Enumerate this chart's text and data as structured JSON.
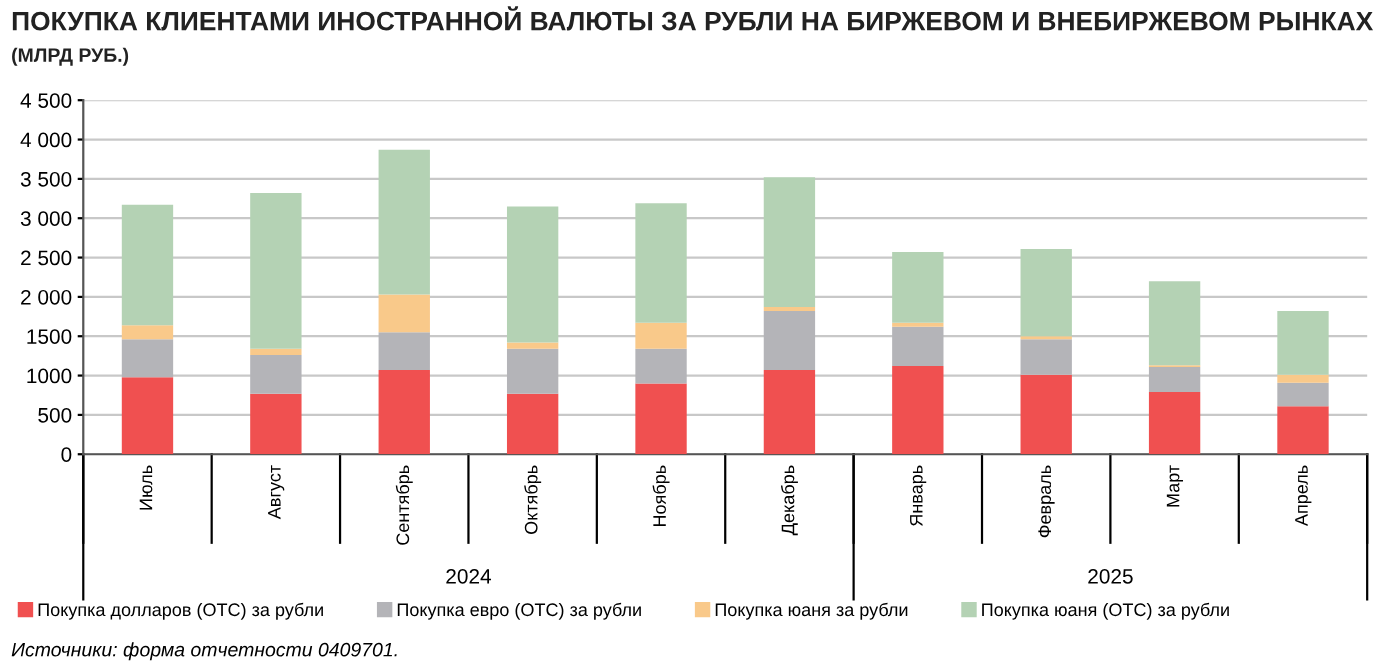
{
  "chart_data": {
    "type": "bar",
    "title": "ПОКУПКА КЛИЕНТАМИ ИНОСТРАННОЙ ВАЛЮТЫ ЗА РУБЛИ НА БИРЖЕВОМ И ВНЕБИРЖЕВОМ РЫНКАХ",
    "subtitle": "(МЛРД РУБ.)",
    "categories": [
      "Июль",
      "Август",
      "Сентябрь",
      "Октябрь",
      "Ноябрь",
      "Декабрь",
      "Январь",
      "Февраль",
      "Март",
      "Апрель"
    ],
    "stacked": true,
    "series": [
      {
        "name": "Покупка долларов (OTC) за рубли",
        "color": "#f05050",
        "values": [
          980,
          770,
          1070,
          770,
          900,
          1070,
          1120,
          1010,
          790,
          610
        ]
      },
      {
        "name": "Покупка евро (OTC) за рубли",
        "color": "#b4b4b8",
        "values": [
          480,
          490,
          480,
          570,
          440,
          750,
          500,
          450,
          320,
          300
        ]
      },
      {
        "name": "Покупка юаня за рубли",
        "color": "#f9c98a",
        "values": [
          180,
          80,
          480,
          80,
          330,
          50,
          50,
          40,
          20,
          100
        ]
      },
      {
        "name": "Покупка юаня (OTC) за рубли",
        "color": "#b4d2b4",
        "values": [
          1530,
          1980,
          1840,
          1730,
          1520,
          1650,
          900,
          1110,
          1070,
          810
        ]
      }
    ],
    "ylim": [
      0,
      4500
    ],
    "yticks": [
      {
        "value": 0,
        "label": "0"
      },
      {
        "value": 500,
        "label": "500"
      },
      {
        "value": 1000,
        "label": "1000"
      },
      {
        "value": 1500,
        "label": "1500"
      },
      {
        "value": 2000,
        "label": "2 000"
      },
      {
        "value": 2500,
        "label": "2 500"
      },
      {
        "value": 3000,
        "label": "3 000"
      },
      {
        "value": 3500,
        "label": "3 500"
      },
      {
        "value": 4000,
        "label": "4 000"
      },
      {
        "value": 4500,
        "label": "4 500"
      }
    ],
    "grid": "y",
    "legend": "bottom",
    "annotations": [
      "2024",
      "2025",
      "Источники: форма отчетности 0409701."
    ]
  }
}
